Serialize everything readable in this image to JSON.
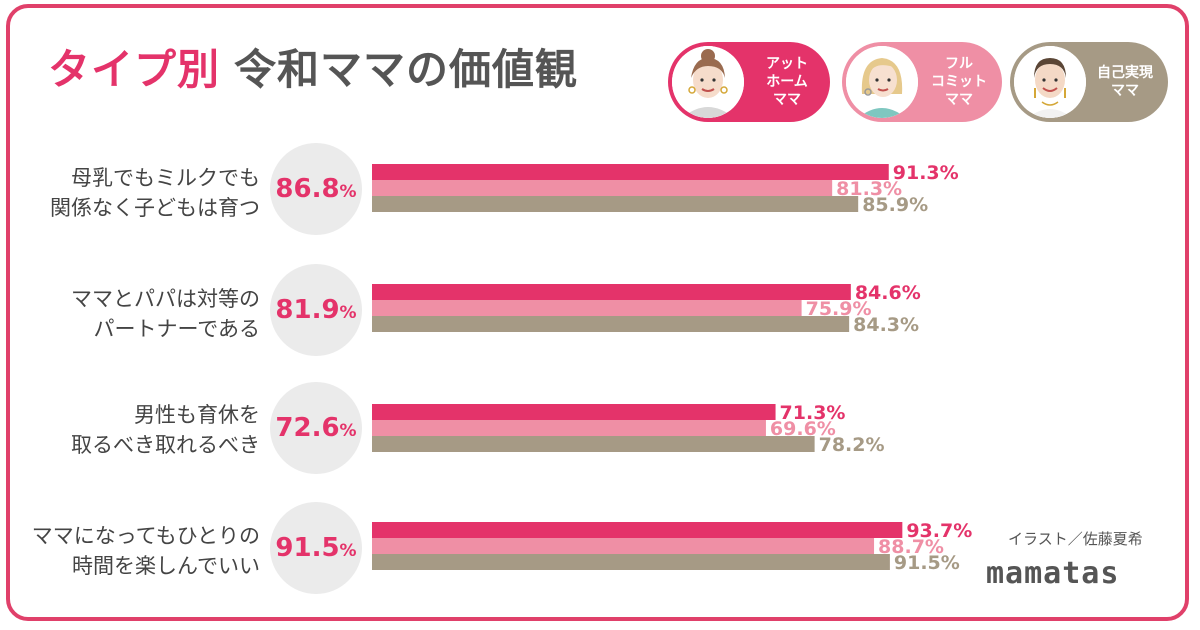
{
  "title": {
    "accent": "タイプ別",
    "main": "令和ママの価値観"
  },
  "personas": [
    {
      "label": "アット\nホーム\nママ",
      "color": "#e4336a"
    },
    {
      "label": "フル\nコミット\nママ",
      "color": "#ef8fa5"
    },
    {
      "label": "自己実現\nママ",
      "color": "#a69a85"
    }
  ],
  "credit": "イラスト／佐藤夏希",
  "logo": "mamatas",
  "chart_data": {
    "type": "bar",
    "orientation": "horizontal",
    "title": "タイプ別 令和ママの価値観",
    "categories": [
      "母乳でもミルクでも\n関係なく子どもは育つ",
      "ママとパパは対等の\nパートナーである",
      "男性も育休を\n取るべき取れるべき",
      "ママになってもひとりの\n時間を楽しんでいい"
    ],
    "averages": [
      "86.8",
      "81.9",
      "72.6",
      "91.5"
    ],
    "series": [
      {
        "name": "アットホームママ",
        "color": "#e4336a",
        "values": [
          91.3,
          84.6,
          71.3,
          93.7
        ]
      },
      {
        "name": "フルコミットママ",
        "color": "#ef8fa5",
        "values": [
          81.3,
          75.9,
          69.6,
          88.7
        ]
      },
      {
        "name": "自己実現ママ",
        "color": "#a69a85",
        "values": [
          85.9,
          84.3,
          78.2,
          91.5
        ]
      }
    ],
    "unit": "%",
    "xlim": [
      0,
      100
    ]
  }
}
